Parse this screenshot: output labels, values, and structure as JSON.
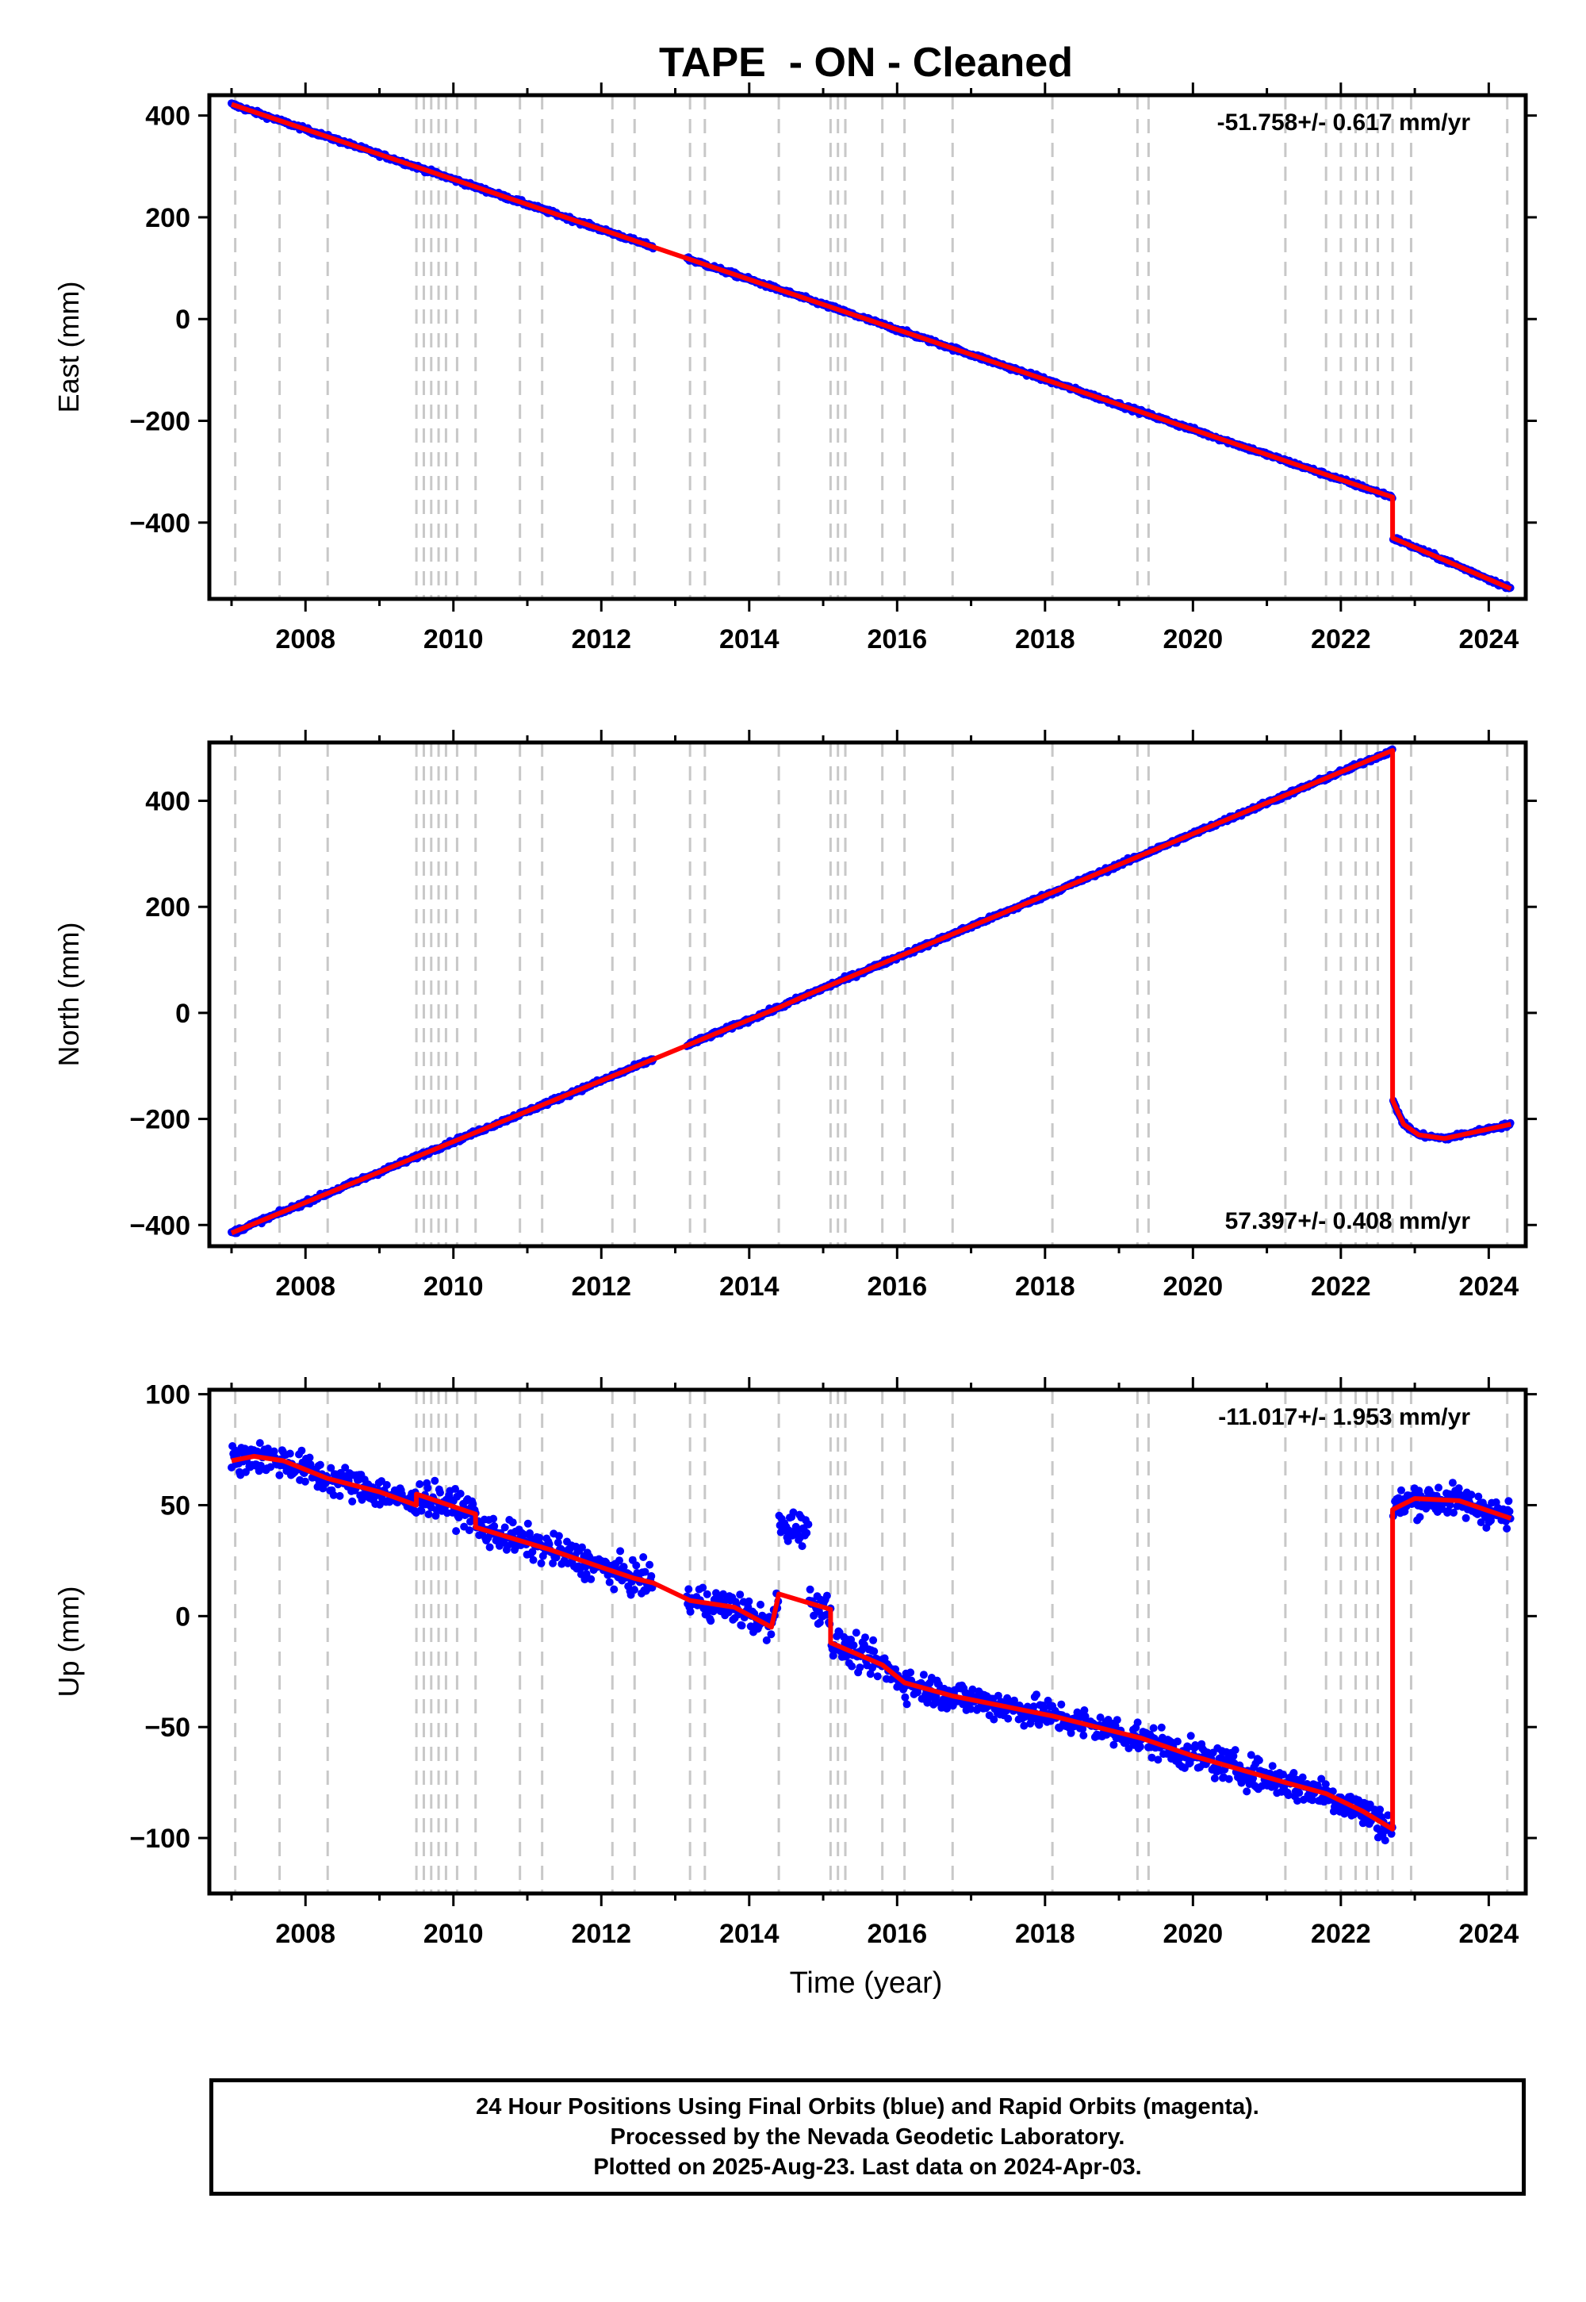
{
  "title": "TAPE  - ON - Cleaned",
  "xlabel": "Time (year)",
  "x_ticks": [
    "2008",
    "2010",
    "2012",
    "2014",
    "2016",
    "2018",
    "2020",
    "2022",
    "2024"
  ],
  "colors": {
    "data_points": "#0000ff",
    "model_line": "#ff0000",
    "event_lines": "#c8c8c8"
  },
  "event_lines_years": [
    2007.05,
    2007.65,
    2008.3,
    2009.5,
    2009.6,
    2009.7,
    2009.8,
    2009.9,
    2010.05,
    2010.3,
    2010.9,
    2011.2,
    2012.15,
    2012.45,
    2013.2,
    2013.4,
    2014.4,
    2015.1,
    2015.2,
    2015.3,
    2015.8,
    2016.1,
    2016.75,
    2018.1,
    2019.25,
    2019.4,
    2021.25,
    2021.8,
    2022.0,
    2022.2,
    2022.35,
    2022.5,
    2022.7,
    2022.95,
    2024.25
  ],
  "chart_data": [
    {
      "type": "scatter",
      "ylabel": "East (mm)",
      "rate_label": "-51.758+/- 0.617 mm/yr",
      "rate_position": "top-right",
      "xlim": [
        2006.7,
        2024.5
      ],
      "ylim": [
        -550,
        440
      ],
      "y_ticks": [
        400,
        200,
        0,
        -200,
        -400
      ],
      "y_tick_labels": [
        "400",
        "200",
        "0",
        "−200",
        "−400"
      ],
      "model": [
        {
          "x": 2007.0,
          "y": 422
        },
        {
          "x": 2022.7,
          "y": -350
        },
        {
          "x": 2022.7,
          "y": -430
        },
        {
          "x": 2024.3,
          "y": -530
        }
      ],
      "noise_mm": 4
    },
    {
      "type": "scatter",
      "ylabel": "North (mm)",
      "rate_label": "57.397+/- 0.408 mm/yr",
      "rate_position": "bottom-right",
      "xlim": [
        2006.7,
        2024.5
      ],
      "ylim": [
        -440,
        510
      ],
      "y_ticks": [
        400,
        200,
        0,
        -200,
        -400
      ],
      "y_tick_labels": [
        "400",
        "200",
        "0",
        "−200",
        "−400"
      ],
      "model": [
        {
          "x": 2007.0,
          "y": -415
        },
        {
          "x": 2014.4,
          "y": 10
        },
        {
          "x": 2014.8,
          "y": 35
        },
        {
          "x": 2022.7,
          "y": 495
        },
        {
          "x": 2022.7,
          "y": -165
        },
        {
          "x": 2022.85,
          "y": -210
        },
        {
          "x": 2023.05,
          "y": -230
        },
        {
          "x": 2023.4,
          "y": -237
        },
        {
          "x": 2024.3,
          "y": -210
        }
      ],
      "noise_mm": 4
    },
    {
      "type": "scatter",
      "ylabel": "Up (mm)",
      "rate_label": "-11.017+/- 1.953 mm/yr",
      "rate_position": "top-right",
      "xlim": [
        2006.7,
        2024.5
      ],
      "ylim": [
        -125,
        102
      ],
      "y_ticks": [
        100,
        50,
        0,
        -50,
        -100
      ],
      "y_tick_labels": [
        "100",
        "50",
        "0",
        "−50",
        "−100"
      ],
      "model": [
        {
          "x": 2007.0,
          "y": 70
        },
        {
          "x": 2007.3,
          "y": 72
        },
        {
          "x": 2007.7,
          "y": 70
        },
        {
          "x": 2008.0,
          "y": 66
        },
        {
          "x": 2008.3,
          "y": 62
        },
        {
          "x": 2009.0,
          "y": 56
        },
        {
          "x": 2009.5,
          "y": 50
        },
        {
          "x": 2009.5,
          "y": 55
        },
        {
          "x": 2010.3,
          "y": 46
        },
        {
          "x": 2010.3,
          "y": 40
        },
        {
          "x": 2010.9,
          "y": 34
        },
        {
          "x": 2011.3,
          "y": 30
        },
        {
          "x": 2012.0,
          "y": 22
        },
        {
          "x": 2012.45,
          "y": 17
        },
        {
          "x": 2012.7,
          "y": 15
        },
        {
          "x": 2013.2,
          "y": 7
        },
        {
          "x": 2013.8,
          "y": 4
        },
        {
          "x": 2014.3,
          "y": -5
        },
        {
          "x": 2014.4,
          "y": 10
        },
        {
          "x": 2015.1,
          "y": 3
        },
        {
          "x": 2015.1,
          "y": -12
        },
        {
          "x": 2015.8,
          "y": -22
        },
        {
          "x": 2016.1,
          "y": -30
        },
        {
          "x": 2016.75,
          "y": -36
        },
        {
          "x": 2018.1,
          "y": -45
        },
        {
          "x": 2019.3,
          "y": -55
        },
        {
          "x": 2020.0,
          "y": -63
        },
        {
          "x": 2021.25,
          "y": -75
        },
        {
          "x": 2021.8,
          "y": -80
        },
        {
          "x": 2022.3,
          "y": -88
        },
        {
          "x": 2022.7,
          "y": -96
        },
        {
          "x": 2022.7,
          "y": 48
        },
        {
          "x": 2023.0,
          "y": 53
        },
        {
          "x": 2023.6,
          "y": 52
        },
        {
          "x": 2024.3,
          "y": 44
        }
      ],
      "anomaly": {
        "x_range": [
          2014.4,
          2014.8
        ],
        "center": 40,
        "spread": 15
      },
      "noise_mm": 7
    }
  ],
  "caption": [
    "24 Hour Positions Using Final Orbits (blue) and Rapid Orbits (magenta).",
    "Processed by the Nevada Geodetic Laboratory.",
    "Plotted on 2025-Aug-23. Last data on 2024-Apr-03."
  ]
}
